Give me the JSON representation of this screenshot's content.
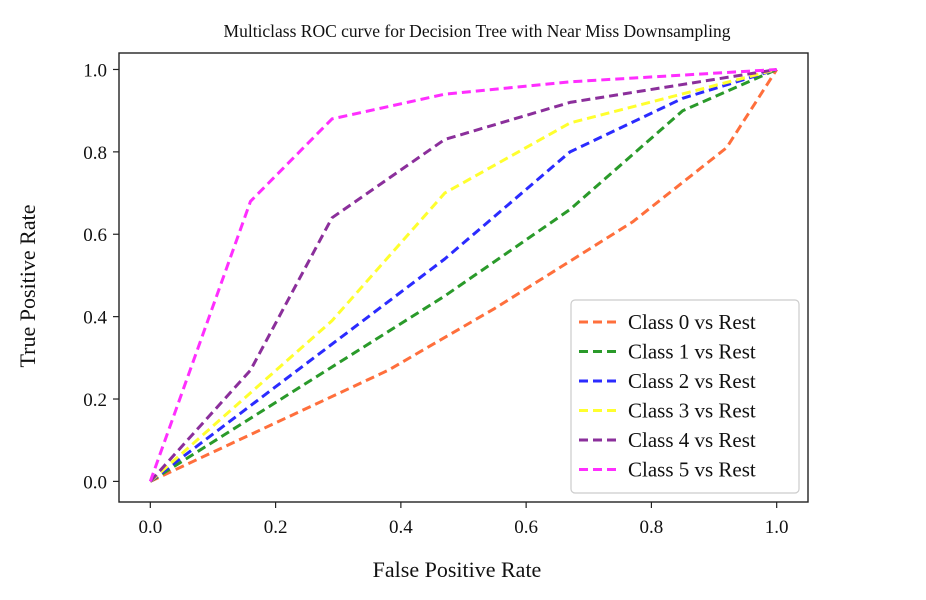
{
  "chart_data": {
    "type": "line",
    "title": "Multiclass ROC curve for Decision Tree with Near Miss Downsampling",
    "xlabel": "False Positive Rate",
    "ylabel": "True Positive Rate",
    "xlim": [
      -0.05,
      1.05
    ],
    "ylim": [
      -0.05,
      1.04
    ],
    "xticks": [
      0.0,
      0.2,
      0.4,
      0.6,
      0.8,
      1.0
    ],
    "yticks": [
      0.0,
      0.2,
      0.4,
      0.6,
      0.8,
      1.0
    ],
    "xtick_labels": [
      "0.0",
      "0.2",
      "0.4",
      "0.6",
      "0.8",
      "1.0"
    ],
    "ytick_labels": [
      "0.0",
      "0.2",
      "0.4",
      "0.6",
      "0.8",
      "1.0"
    ],
    "grid": false,
    "legend_position": "lower-right",
    "line_style": "dashed",
    "series": [
      {
        "name": "Class 0 vs Rest",
        "color": "#ff6f3c",
        "x": [
          0.0,
          0.38,
          0.55,
          0.77,
          0.92,
          1.0
        ],
        "y": [
          0.0,
          0.27,
          0.42,
          0.63,
          0.81,
          1.0
        ]
      },
      {
        "name": "Class 1 vs Rest",
        "color": "#2a9a2a",
        "x": [
          0.0,
          0.47,
          0.67,
          0.85,
          1.0
        ],
        "y": [
          0.0,
          0.45,
          0.66,
          0.9,
          1.0
        ]
      },
      {
        "name": "Class 2 vs Rest",
        "color": "#2b2bff",
        "x": [
          0.0,
          0.47,
          0.67,
          0.85,
          1.0
        ],
        "y": [
          0.0,
          0.54,
          0.8,
          0.93,
          1.0
        ]
      },
      {
        "name": "Class 3 vs Rest",
        "color": "#ffff2e",
        "x": [
          0.0,
          0.29,
          0.47,
          0.67,
          1.0
        ],
        "y": [
          0.0,
          0.39,
          0.7,
          0.87,
          1.0
        ]
      },
      {
        "name": "Class 4 vs Rest",
        "color": "#8b2f9b",
        "x": [
          0.0,
          0.16,
          0.29,
          0.47,
          0.67,
          1.0
        ],
        "y": [
          0.0,
          0.27,
          0.64,
          0.83,
          0.92,
          1.0
        ]
      },
      {
        "name": "Class 5 vs Rest",
        "color": "#ff2eff",
        "x": [
          0.0,
          0.16,
          0.29,
          0.47,
          0.67,
          1.0
        ],
        "y": [
          0.0,
          0.68,
          0.88,
          0.94,
          0.97,
          1.0
        ]
      }
    ]
  }
}
